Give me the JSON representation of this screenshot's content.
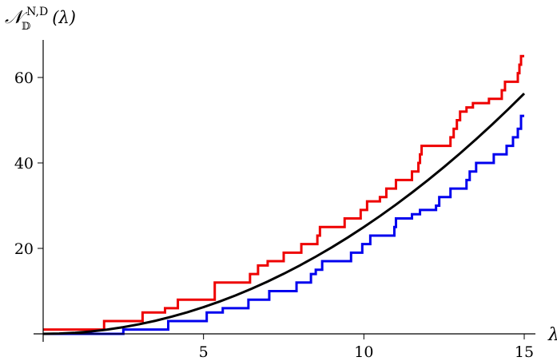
{
  "chart_data": {
    "type": "line",
    "title": "",
    "xlabel": "λ",
    "ylabel": {
      "base": "𝒩",
      "subscript": "𝔻",
      "superscript": "N,D",
      "argument": "(λ)"
    },
    "xlim": [
      0,
      15.1
    ],
    "ylim": [
      -1,
      68
    ],
    "xticks": [
      5,
      10,
      15
    ],
    "yticks": [
      20,
      40,
      60
    ],
    "grid": false,
    "legend": "none",
    "series": [
      {
        "step": true,
        "color": "#ee0000",
        "x": [
          0,
          1.9,
          3.1,
          3.8,
          4.2,
          5.35,
          6.45,
          6.7,
          7.0,
          7.5,
          8.05,
          8.55,
          8.63,
          9.4,
          9.9,
          10.1,
          10.5,
          10.7,
          11.0,
          11.5,
          11.7,
          11.75,
          11.8,
          12.7,
          12.8,
          12.9,
          13.0,
          13.2,
          13.4,
          13.9,
          14.3,
          14.4,
          14.8,
          14.85,
          14.9
        ],
        "y": [
          1,
          3,
          5,
          6,
          8,
          12,
          14,
          16,
          17,
          19,
          21,
          23,
          25,
          27,
          29,
          31,
          32,
          34,
          36,
          38,
          40,
          42,
          44,
          46,
          48,
          50,
          52,
          53,
          54,
          55,
          57,
          59,
          61,
          63,
          65
        ]
      },
      {
        "step": true,
        "color": "#0000ee",
        "x": [
          0,
          2.5,
          3.9,
          5.1,
          5.6,
          6.4,
          7.05,
          7.9,
          8.35,
          8.5,
          8.7,
          9.6,
          9.95,
          10.2,
          10.95,
          11.0,
          11.5,
          11.75,
          12.25,
          12.35,
          12.7,
          13.2,
          13.3,
          13.5,
          14.05,
          14.45,
          14.65,
          14.8,
          14.9
        ],
        "y": [
          0,
          1,
          3,
          5,
          6,
          8,
          10,
          12,
          14,
          15,
          17,
          19,
          21,
          23,
          25,
          27,
          28,
          29,
          30,
          32,
          34,
          36,
          38,
          40,
          42,
          44,
          46,
          48,
          51
        ]
      },
      {
        "step": false,
        "color": "#000000",
        "x": [
          0,
          0.5,
          1,
          1.5,
          2,
          2.5,
          3,
          3.5,
          4,
          4.5,
          5,
          5.5,
          6,
          6.5,
          7,
          7.5,
          8,
          8.5,
          9,
          9.5,
          10,
          10.5,
          11,
          11.5,
          12,
          12.5,
          13,
          13.5,
          14,
          14.5,
          15
        ],
        "y": [
          0,
          0.06,
          0.25,
          0.56,
          1.0,
          1.56,
          2.25,
          3.06,
          4.0,
          5.06,
          6.25,
          7.56,
          9.0,
          10.56,
          12.25,
          14.06,
          16.0,
          18.06,
          20.25,
          22.56,
          25.0,
          27.56,
          30.25,
          33.06,
          36.0,
          39.06,
          42.25,
          45.56,
          49.0,
          52.56,
          56.25
        ]
      }
    ]
  }
}
